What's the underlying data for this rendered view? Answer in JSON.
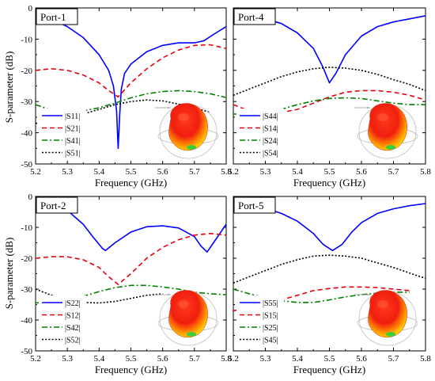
{
  "y_axis_label": "S-parameter (dB)",
  "chart_data": [
    {
      "type": "line",
      "title": "Port-1",
      "xlabel": "Frequency (GHz)",
      "ylabel": "S-parameter (dB)",
      "xlim": [
        5.2,
        5.8
      ],
      "ylim": [
        -50,
        0
      ],
      "xticks": [
        "5.2",
        "5.3",
        "5.4",
        "5.5",
        "5.6",
        "5.7",
        "5.8"
      ],
      "yticks": [
        "0",
        "-10",
        "-20",
        "-30",
        "-40",
        "-50"
      ],
      "legend_position": "lower-left",
      "has_pattern_inset": true,
      "series": [
        {
          "name": "|S11|",
          "color": "#0000ff",
          "dash": "solid",
          "x": [
            5.2,
            5.25,
            5.3,
            5.35,
            5.4,
            5.43,
            5.445,
            5.455,
            5.46,
            5.465,
            5.47,
            5.48,
            5.5,
            5.55,
            5.6,
            5.65,
            5.7,
            5.73,
            5.76,
            5.8
          ],
          "y": [
            -2.5,
            -3.5,
            -6,
            -9.5,
            -15,
            -20,
            -25,
            -33,
            -45,
            -34,
            -26,
            -21,
            -18,
            -14,
            -12,
            -11.2,
            -11.2,
            -10.5,
            -8.5,
            -6
          ]
        },
        {
          "name": "|S21|",
          "color": "#e8000b",
          "dash": "dash",
          "x": [
            5.2,
            5.25,
            5.3,
            5.35,
            5.4,
            5.43,
            5.46,
            5.5,
            5.55,
            5.6,
            5.65,
            5.7,
            5.75,
            5.8
          ],
          "y": [
            -20,
            -19.5,
            -20,
            -21.5,
            -24,
            -26.5,
            -28.5,
            -24,
            -19.5,
            -16,
            -13.5,
            -12,
            -11.8,
            -13
          ]
        },
        {
          "name": "|S41|",
          "color": "#008000",
          "dash": "dashdot",
          "x": [
            5.2,
            5.25,
            5.3,
            5.35,
            5.4,
            5.45,
            5.5,
            5.55,
            5.6,
            5.65,
            5.7,
            5.75,
            5.8
          ],
          "y": [
            -31,
            -32.8,
            -33.5,
            -33,
            -32,
            -30.5,
            -28.8,
            -27.5,
            -26.8,
            -26.5,
            -26.8,
            -27.5,
            -28.7
          ]
        },
        {
          "name": "|S51|",
          "color": "#000000",
          "dash": "dot",
          "x": [
            5.2,
            5.25,
            5.3,
            5.35,
            5.4,
            5.45,
            5.5,
            5.55,
            5.6,
            5.65,
            5.7,
            5.75
          ],
          "y": [
            -37,
            -36.5,
            -35.5,
            -34,
            -32.5,
            -31,
            -30,
            -29.5,
            -29.8,
            -30.8,
            -32,
            -33.5
          ]
        }
      ]
    },
    {
      "type": "line",
      "title": "Port-4",
      "xlabel": "Frequency (GHz)",
      "ylabel": "",
      "xlim": [
        5.2,
        5.8
      ],
      "ylim": [
        -50,
        0
      ],
      "xticks": [
        "5.2",
        "5.3",
        "5.4",
        "5.5",
        "5.6",
        "5.7",
        "5.8"
      ],
      "yticks": [],
      "legend_position": "lower-left",
      "has_pattern_inset": true,
      "series": [
        {
          "name": "|S44|",
          "color": "#0000ff",
          "dash": "solid",
          "x": [
            5.2,
            5.25,
            5.3,
            5.35,
            5.4,
            5.45,
            5.48,
            5.5,
            5.52,
            5.55,
            5.6,
            5.65,
            5.7,
            5.75,
            5.8
          ],
          "y": [
            -2,
            -2.5,
            -3.5,
            -5,
            -8,
            -13,
            -19,
            -24,
            -21,
            -15,
            -9,
            -6,
            -4.5,
            -3.5,
            -2.5
          ]
        },
        {
          "name": "|S14|",
          "color": "#e8000b",
          "dash": "dash",
          "x": [
            5.2,
            5.25,
            5.3,
            5.35,
            5.4,
            5.45,
            5.5,
            5.55,
            5.6,
            5.65,
            5.7,
            5.75,
            5.8
          ],
          "y": [
            -31,
            -33,
            -34,
            -33.5,
            -32.5,
            -30.5,
            -28.5,
            -27,
            -26.5,
            -26.5,
            -27,
            -28,
            -29.5
          ]
        },
        {
          "name": "|S24|",
          "color": "#008000",
          "dash": "dashdot",
          "x": [
            5.2,
            5.25,
            5.3,
            5.35,
            5.4,
            5.45,
            5.5,
            5.55,
            5.6,
            5.65,
            5.7,
            5.75,
            5.8
          ],
          "y": [
            -34,
            -34,
            -33.5,
            -32.5,
            -31,
            -29.8,
            -29,
            -28.8,
            -29,
            -29.8,
            -30.5,
            -31,
            -31
          ]
        },
        {
          "name": "|S54|",
          "color": "#000000",
          "dash": "dot",
          "x": [
            5.2,
            5.25,
            5.3,
            5.35,
            5.4,
            5.45,
            5.5,
            5.55,
            5.6,
            5.65,
            5.7,
            5.75,
            5.8
          ],
          "y": [
            -28,
            -26,
            -24,
            -22,
            -20.5,
            -19.5,
            -19,
            -19.3,
            -20,
            -21.3,
            -23,
            -24.5,
            -26.5
          ]
        }
      ]
    },
    {
      "type": "line",
      "title": "Port-2",
      "xlabel": "Frequency (GHz)",
      "ylabel": "S-parameter (dB)",
      "xlim": [
        5.2,
        5.8
      ],
      "ylim": [
        -50,
        0
      ],
      "xticks": [
        "5.2",
        "5.3",
        "5.4",
        "5.5",
        "5.6",
        "5.7",
        "5.8"
      ],
      "yticks": [
        "0",
        "-10",
        "-20",
        "-30",
        "-40",
        "-50"
      ],
      "legend_position": "lower-left",
      "has_pattern_inset": true,
      "series": [
        {
          "name": "|S22|",
          "color": "#0000ff",
          "dash": "solid",
          "x": [
            5.2,
            5.25,
            5.3,
            5.35,
            5.38,
            5.41,
            5.42,
            5.45,
            5.5,
            5.55,
            5.6,
            5.65,
            5.7,
            5.72,
            5.74,
            5.76,
            5.8
          ],
          "y": [
            -1,
            -2,
            -4.5,
            -9,
            -13,
            -16.8,
            -17.5,
            -15,
            -11.5,
            -9.8,
            -9.5,
            -10.2,
            -13,
            -16,
            -18,
            -15,
            -9
          ]
        },
        {
          "name": "|S12|",
          "color": "#e8000b",
          "dash": "dash",
          "x": [
            5.2,
            5.25,
            5.3,
            5.35,
            5.4,
            5.43,
            5.46,
            5.5,
            5.55,
            5.6,
            5.65,
            5.7,
            5.75,
            5.8
          ],
          "y": [
            -20,
            -19.5,
            -19.5,
            -20.5,
            -23,
            -26,
            -28.5,
            -25,
            -20,
            -16.5,
            -14,
            -12.5,
            -12,
            -12.5
          ]
        },
        {
          "name": "|S42|",
          "color": "#008000",
          "dash": "dashdot",
          "x": [
            5.2,
            5.25,
            5.3,
            5.35,
            5.4,
            5.45,
            5.5,
            5.55,
            5.6,
            5.65,
            5.7,
            5.75,
            5.8
          ],
          "y": [
            -34.5,
            -34,
            -33.3,
            -32.3,
            -30.8,
            -29.5,
            -28.8,
            -28.8,
            -29.3,
            -30,
            -31,
            -31.5,
            -31.8
          ]
        },
        {
          "name": "|S52|",
          "color": "#000000",
          "dash": "dot",
          "x": [
            5.2,
            5.25,
            5.3,
            5.35,
            5.4,
            5.45,
            5.5,
            5.55,
            5.6
          ],
          "y": [
            -30,
            -32,
            -33.5,
            -34.3,
            -34.5,
            -34,
            -33,
            -32,
            -31.5
          ]
        }
      ]
    },
    {
      "type": "line",
      "title": "Port-5",
      "xlabel": "Frequency (GHz)",
      "ylabel": "",
      "xlim": [
        5.2,
        5.8
      ],
      "ylim": [
        -50,
        0
      ],
      "xticks": [
        "5.2",
        "5.3",
        "5.4",
        "5.5",
        "5.6",
        "5.7",
        "5.8"
      ],
      "yticks": [],
      "legend_position": "lower-left",
      "has_pattern_inset": true,
      "series": [
        {
          "name": "|S55|",
          "color": "#0000ff",
          "dash": "solid",
          "x": [
            5.2,
            5.25,
            5.3,
            5.35,
            5.4,
            5.45,
            5.48,
            5.51,
            5.54,
            5.57,
            5.6,
            5.65,
            5.7,
            5.75,
            5.8
          ],
          "y": [
            -2,
            -2.5,
            -3.8,
            -5.5,
            -8,
            -12,
            -15.5,
            -17.5,
            -15.5,
            -11.5,
            -8.5,
            -5.5,
            -4,
            -3,
            -2.3
          ]
        },
        {
          "name": "|S15|",
          "color": "#e8000b",
          "dash": "dash",
          "x": [
            5.2,
            5.25,
            5.3,
            5.35,
            5.4,
            5.45,
            5.5,
            5.55,
            5.6,
            5.65,
            5.7,
            5.75
          ],
          "y": [
            -37,
            -36,
            -35,
            -33.5,
            -32,
            -30.5,
            -29.8,
            -29.3,
            -29.3,
            -29.5,
            -30,
            -30.5
          ]
        },
        {
          "name": "|S25|",
          "color": "#008000",
          "dash": "dashdot",
          "x": [
            5.2,
            5.25,
            5.3,
            5.35,
            5.4,
            5.45,
            5.5,
            5.55,
            5.6,
            5.65,
            5.7,
            5.75
          ],
          "y": [
            -30,
            -31.5,
            -32.8,
            -33.8,
            -34.3,
            -34.3,
            -33.5,
            -32.5,
            -31.8,
            -31.3,
            -31,
            -31
          ]
        },
        {
          "name": "|S45|",
          "color": "#000000",
          "dash": "dot",
          "x": [
            5.2,
            5.25,
            5.3,
            5.35,
            5.4,
            5.45,
            5.5,
            5.55,
            5.6,
            5.65,
            5.7,
            5.75,
            5.8
          ],
          "y": [
            -28,
            -26,
            -24,
            -22,
            -20.5,
            -19.3,
            -19,
            -19.3,
            -20,
            -21.5,
            -23,
            -24.8,
            -26.5
          ]
        }
      ]
    }
  ]
}
